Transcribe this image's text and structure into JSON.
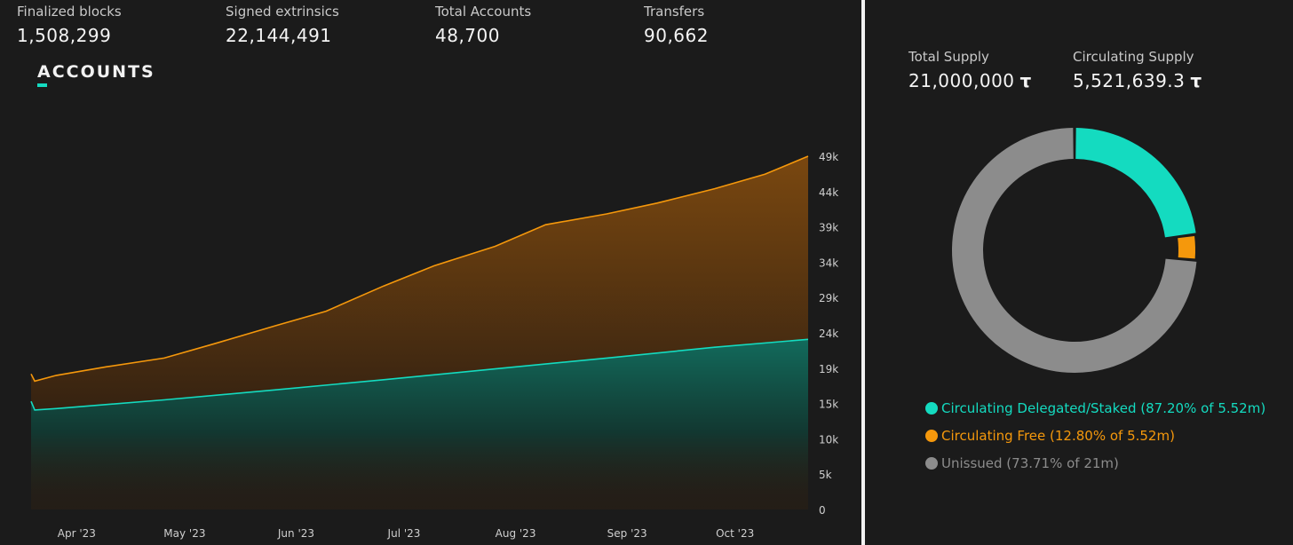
{
  "stats": [
    {
      "label": "Finalized blocks",
      "value": "1,508,299"
    },
    {
      "label": "Signed extrinsics",
      "value": "22,144,491"
    },
    {
      "label": "Total Accounts",
      "value": "48,700"
    },
    {
      "label": "Transfers",
      "value": "90,662"
    }
  ],
  "accounts": {
    "title": "ACCOUNTS",
    "accent_color": "#14dbc0"
  },
  "supply": {
    "total_label": "Total Supply",
    "total_value": "21,000,000",
    "circulating_label": "Circulating Supply",
    "circulating_value": "5,521,639.3",
    "unit": "τ"
  },
  "legend": [
    {
      "text": "Circulating Delegated/Staked (87.20% of 5.52m)",
      "color": "#14dbc0"
    },
    {
      "text": "Circulating Free (12.80% of 5.52m)",
      "color": "#f5980c"
    },
    {
      "text": "Unissued (73.71% of 21m)",
      "color": "#8c8c8c"
    }
  ],
  "chart_data": [
    {
      "type": "area",
      "title": "ACCOUNTS",
      "x": [
        "Apr '23",
        "May '23",
        "Jun '23",
        "Jul '23",
        "Aug '23",
        "Sep '23",
        "Oct '23"
      ],
      "y_ticks": [
        "0",
        "5k",
        "10k",
        "15k",
        "19k",
        "24k",
        "29k",
        "34k",
        "39k",
        "44k",
        "49k"
      ],
      "ylim": [
        0,
        49000
      ],
      "series": [
        {
          "color": "#f5980c",
          "points": [
            [
              "2023-03-25",
              18800
            ],
            [
              "2023-03-26",
              17800
            ],
            [
              "2023-04-01",
              18600
            ],
            [
              "2023-04-15",
              19800
            ],
            [
              "2023-05-01",
              21000
            ],
            [
              "2023-05-15",
              23000
            ],
            [
              "2023-06-01",
              25500
            ],
            [
              "2023-06-15",
              27500
            ],
            [
              "2023-07-01",
              31000
            ],
            [
              "2023-07-15",
              33800
            ],
            [
              "2023-08-01",
              36500
            ],
            [
              "2023-08-15",
              39500
            ],
            [
              "2023-09-01",
              41000
            ],
            [
              "2023-09-15",
              42500
            ],
            [
              "2023-10-01",
              44500
            ],
            [
              "2023-10-15",
              46500
            ],
            [
              "2023-10-27",
              49000
            ]
          ]
        },
        {
          "color": "#14dbc0",
          "points": [
            [
              "2023-03-25",
              15000
            ],
            [
              "2023-03-26",
              13800
            ],
            [
              "2023-04-01",
              14000
            ],
            [
              "2023-05-01",
              15200
            ],
            [
              "2023-06-01",
              16600
            ],
            [
              "2023-07-01",
              18000
            ],
            [
              "2023-08-01",
              19500
            ],
            [
              "2023-09-01",
              21000
            ],
            [
              "2023-10-01",
              22500
            ],
            [
              "2023-10-27",
              23600
            ]
          ]
        }
      ]
    },
    {
      "type": "pie",
      "title": "",
      "categories": [
        "Circulating Delegated/Staked",
        "Circulating Free",
        "Unissued"
      ],
      "values": [
        22.93,
        3.36,
        73.71
      ],
      "colors": [
        "#14dbc0",
        "#f5980c",
        "#8c8c8c"
      ]
    }
  ]
}
